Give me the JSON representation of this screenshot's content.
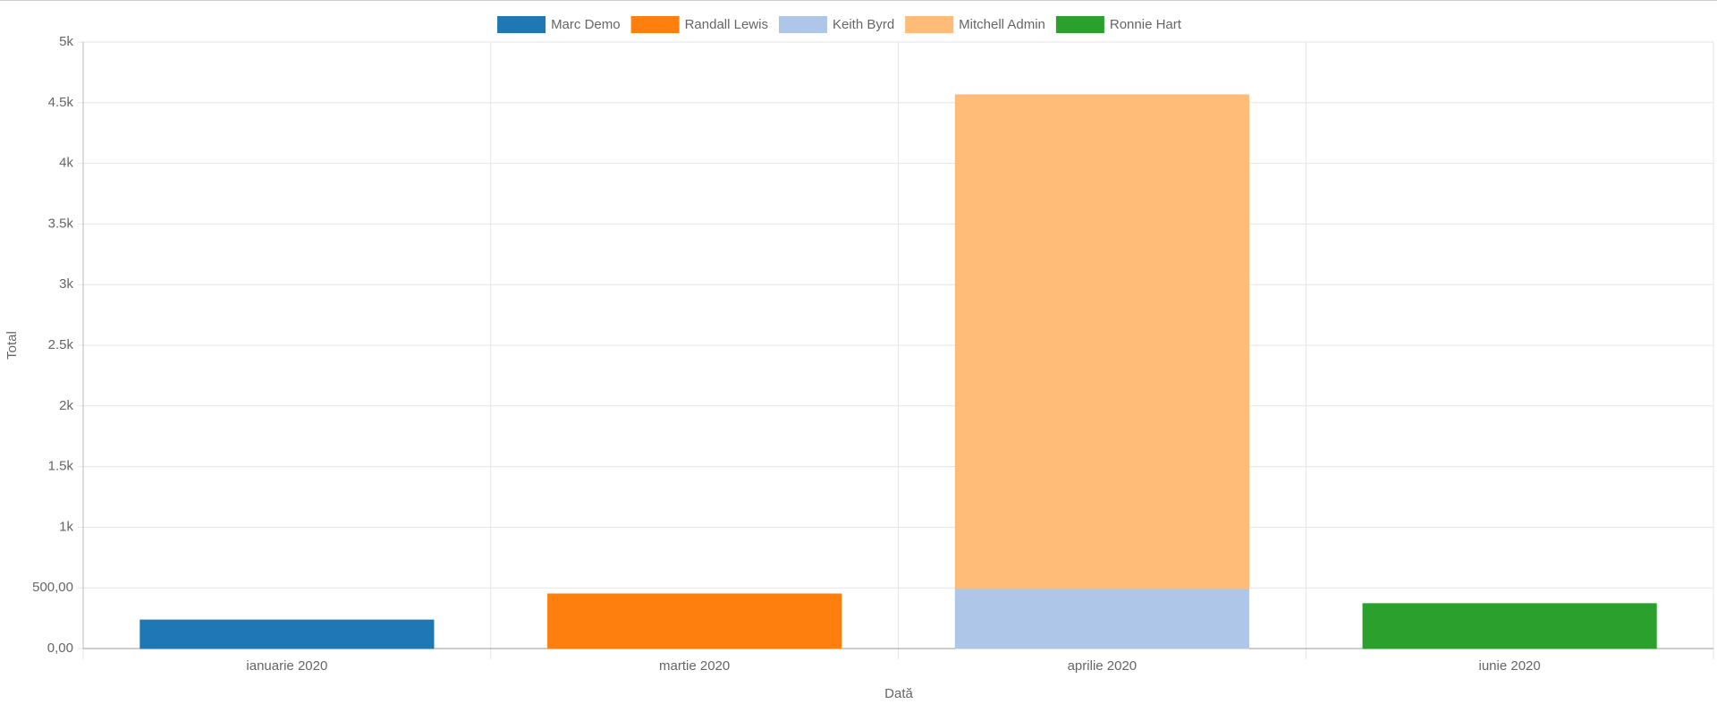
{
  "chart_data": {
    "type": "stacked_bar",
    "categories": [
      "ianuarie 2020",
      "martie 2020",
      "aprilie 2020",
      "iunie 2020"
    ],
    "series": [
      {
        "name": "Marc Demo",
        "color": "#1f77b4",
        "values": [
          235,
          null,
          null,
          null
        ]
      },
      {
        "name": "Randall Lewis",
        "color": "#ff7f0e",
        "values": [
          null,
          450,
          null,
          null
        ]
      },
      {
        "name": "Keith Byrd",
        "color": "#aec7e8",
        "values": [
          null,
          null,
          495,
          null
        ]
      },
      {
        "name": "Mitchell Admin",
        "color": "#ffbb78",
        "values": [
          null,
          null,
          4070,
          null
        ]
      },
      {
        "name": "Ronnie Hart",
        "color": "#2ca02c",
        "values": [
          null,
          null,
          null,
          370
        ]
      }
    ],
    "ylim": [
      0,
      5000
    ],
    "yticks": [
      {
        "value": 0,
        "label": "0,00"
      },
      {
        "value": 500,
        "label": "500,00"
      },
      {
        "value": 1000,
        "label": "1k"
      },
      {
        "value": 1500,
        "label": "1.5k"
      },
      {
        "value": 2000,
        "label": "2k"
      },
      {
        "value": 2500,
        "label": "2.5k"
      },
      {
        "value": 3000,
        "label": "3k"
      },
      {
        "value": 3500,
        "label": "3.5k"
      },
      {
        "value": 4000,
        "label": "4k"
      },
      {
        "value": 4500,
        "label": "4.5k"
      },
      {
        "value": 5000,
        "label": "5k"
      }
    ],
    "y_label": "Total",
    "x_label": "Dată",
    "grid": true,
    "legend": "top"
  }
}
